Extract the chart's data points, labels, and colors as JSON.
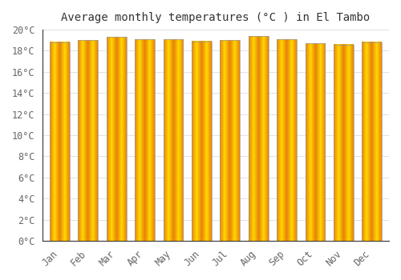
{
  "title": "Average monthly temperatures (°C ) in El Tambo",
  "months": [
    "Jan",
    "Feb",
    "Mar",
    "Apr",
    "May",
    "Jun",
    "Jul",
    "Aug",
    "Sep",
    "Oct",
    "Nov",
    "Dec"
  ],
  "values": [
    18.8,
    19.0,
    19.3,
    19.1,
    19.1,
    18.9,
    19.0,
    19.4,
    19.1,
    18.7,
    18.6,
    18.8
  ],
  "bar_color_center": "#FFD700",
  "bar_color_edge": "#E8820A",
  "edge_color": "#999999",
  "background_color": "#FFFFFF",
  "grid_color": "#E0E0E0",
  "text_color": "#666666",
  "ylim": [
    0,
    20
  ],
  "yticks": [
    0,
    2,
    4,
    6,
    8,
    10,
    12,
    14,
    16,
    18,
    20
  ],
  "title_fontsize": 10,
  "tick_fontsize": 8.5,
  "bar_width": 0.7
}
